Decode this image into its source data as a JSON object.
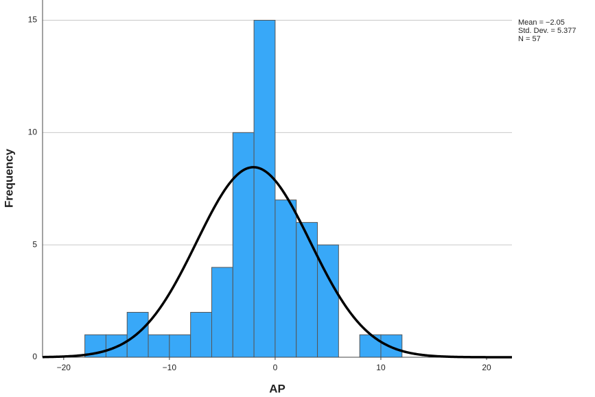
{
  "chart_data": {
    "type": "histogram",
    "bins": [
      -18,
      -16,
      -14,
      -12,
      -10,
      -8,
      -6,
      -4,
      -2,
      0,
      2,
      4,
      6,
      8,
      10,
      12
    ],
    "values": [
      1,
      1,
      2,
      1,
      1,
      2,
      4,
      10,
      15,
      7,
      6,
      5,
      0,
      1,
      1
    ],
    "color": "#38a8f8",
    "xlabel": "AP",
    "ylabel": "Frequency",
    "xlim": [
      -22,
      22.4
    ],
    "ylim": [
      0,
      15.9
    ],
    "xticks": [
      {
        "value": -20,
        "label": "−20"
      },
      {
        "value": -10,
        "label": "−10"
      },
      0,
      10,
      20
    ],
    "yticks": [
      0,
      5,
      10,
      15
    ],
    "grid": true,
    "stats": {
      "values": [
        -2.05,
        5.377,
        57
      ],
      "value_labels": [
        "Mean = −2.05",
        "Std. Dev. = 5.377",
        "N = 57"
      ]
    }
  }
}
